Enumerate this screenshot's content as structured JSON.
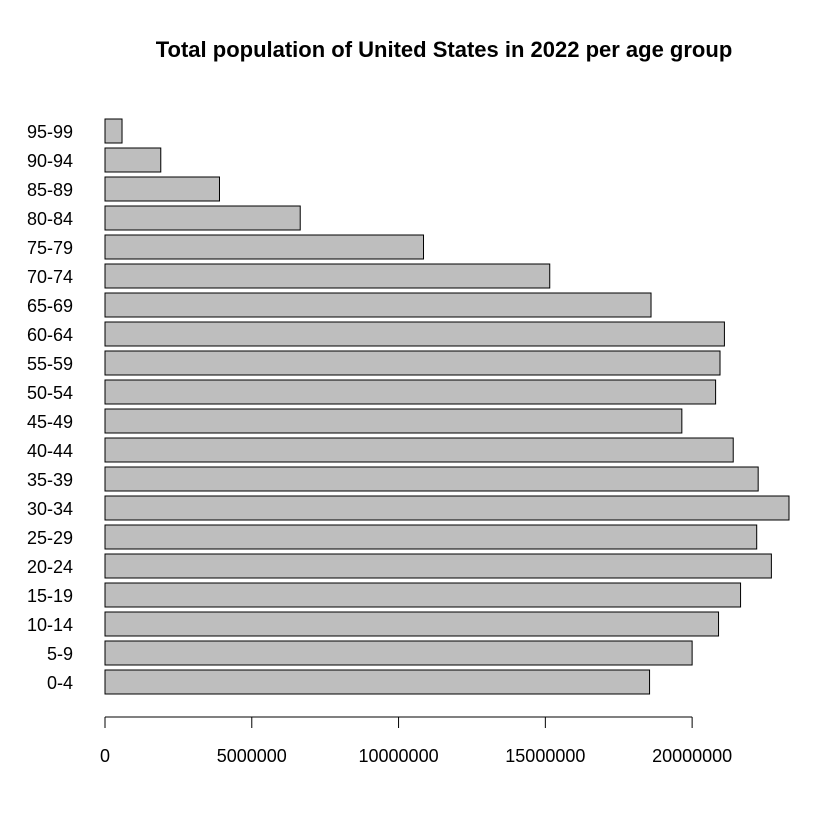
{
  "chart_data": {
    "type": "bar",
    "orientation": "horizontal",
    "title": "Total population of United States in 2022 per age group",
    "xlabel": "",
    "ylabel": "",
    "categories": [
      "0-4",
      "5-9",
      "10-14",
      "15-19",
      "20-24",
      "25-29",
      "30-34",
      "35-39",
      "40-44",
      "45-49",
      "50-54",
      "55-59",
      "60-64",
      "65-69",
      "70-74",
      "75-79",
      "80-84",
      "85-89",
      "90-94",
      "95-99"
    ],
    "values": [
      18550000,
      20000000,
      20900000,
      21650000,
      22700000,
      22200000,
      23300000,
      22250000,
      21400000,
      19650000,
      20800000,
      20950000,
      21100000,
      18600000,
      15150000,
      10850000,
      6650000,
      3900000,
      1900000,
      580000
    ],
    "xlim": [
      0,
      23300000
    ],
    "xticks": [
      0,
      5000000,
      10000000,
      15000000,
      20000000
    ],
    "xtick_labels": [
      "0",
      "5000000",
      "10000000",
      "15000000",
      "20000000"
    ],
    "bar_color": "#bebebe",
    "grid": false,
    "legend": "none"
  }
}
